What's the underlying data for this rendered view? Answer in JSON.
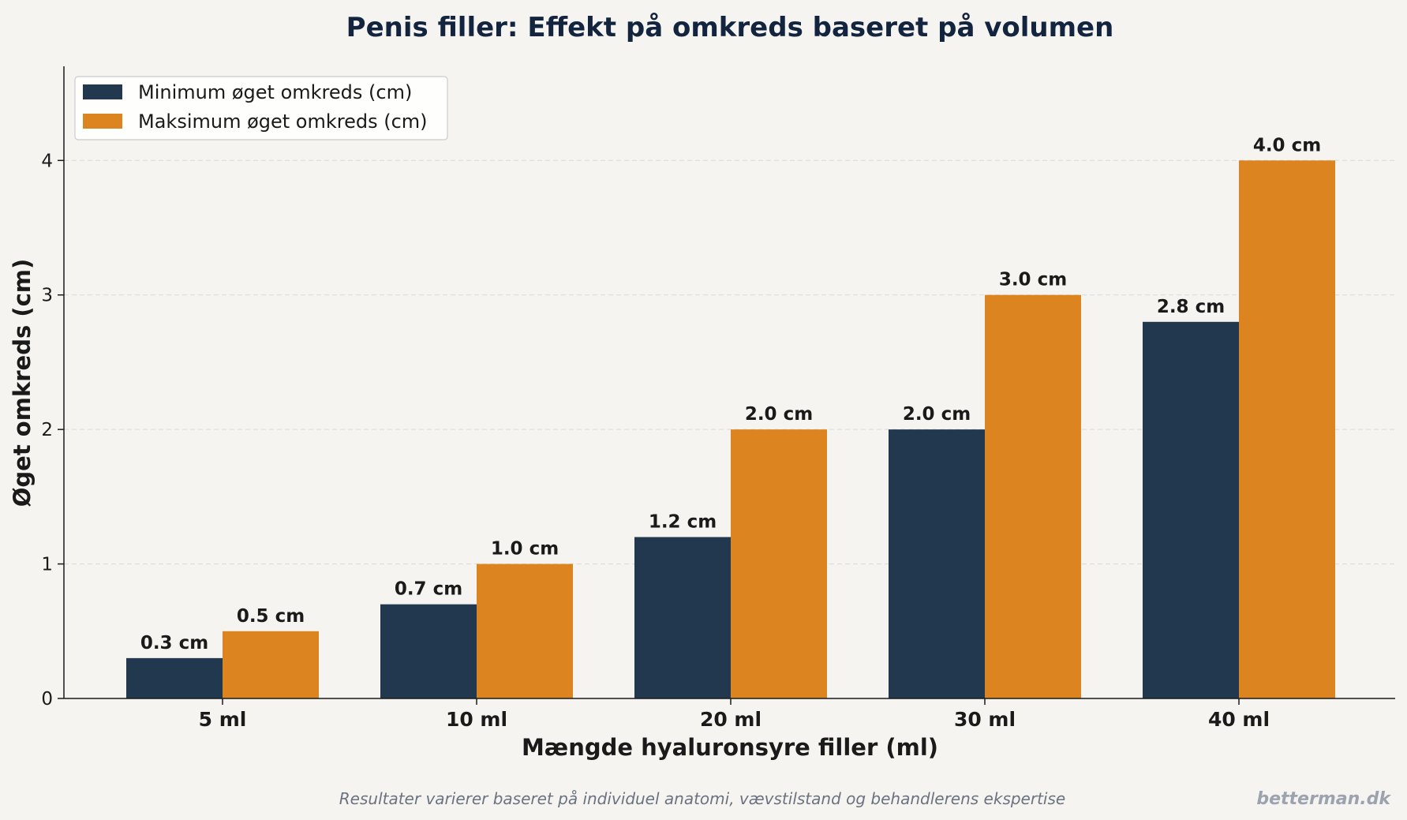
{
  "chart_data": {
    "type": "bar",
    "title": "Penis filler: Effekt på omkreds baseret på volumen",
    "xlabel": "Mængde hyaluronsyre filler (ml)",
    "ylabel": "Øget omkreds (cm)",
    "categories": [
      "5 ml",
      "10 ml",
      "20 ml",
      "30 ml",
      "40 ml"
    ],
    "series": [
      {
        "name": "Minimum øget omkreds (cm)",
        "color": "#22384f",
        "values": [
          0.3,
          0.7,
          1.2,
          2.0,
          2.8
        ],
        "labels": [
          "0.3 cm",
          "0.7 cm",
          "1.2 cm",
          "2.0 cm",
          "2.8 cm"
        ]
      },
      {
        "name": "Maksimum øget omkreds (cm)",
        "color": "#dc841f",
        "values": [
          0.5,
          1.0,
          2.0,
          3.0,
          4.0
        ],
        "labels": [
          "0.5 cm",
          "1.0 cm",
          "2.0 cm",
          "3.0 cm",
          "4.0 cm"
        ]
      }
    ],
    "ylim": [
      0,
      4.7
    ],
    "yticks": [
      0,
      1,
      2,
      3,
      4
    ],
    "grid": "y-dashed",
    "legend": "top-left"
  },
  "footnote": "Resultater varierer baseret på individuel anatomi, vævstilstand og behandlerens ekspertise",
  "brand": "betterman.dk"
}
